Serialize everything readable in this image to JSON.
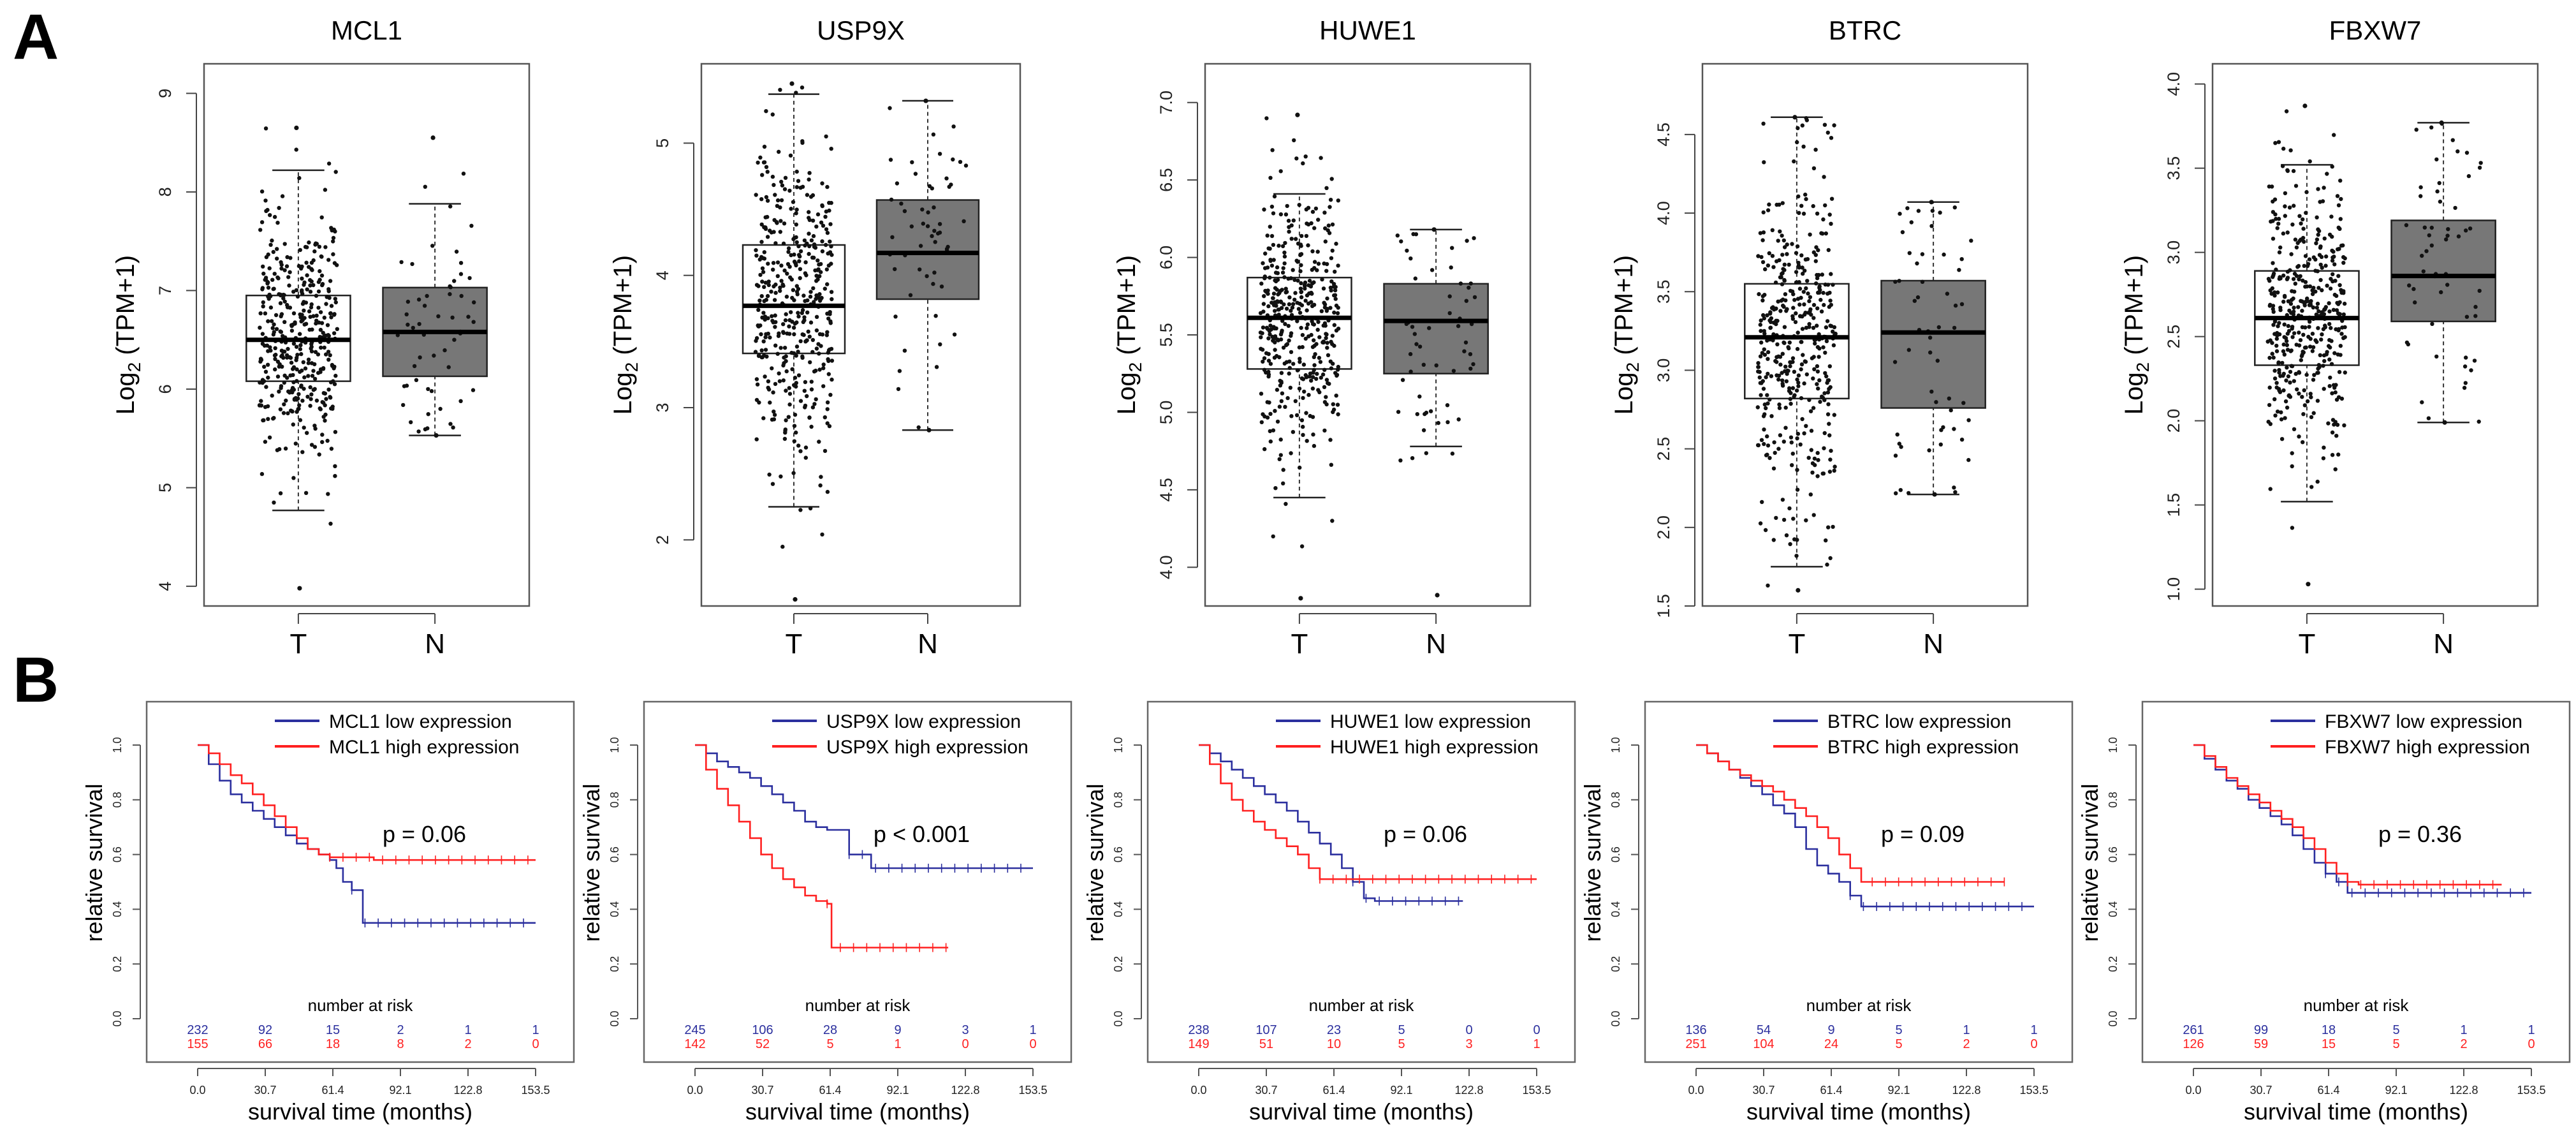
{
  "panels": {
    "a_label": "A",
    "b_label": "B"
  },
  "chart_data": [
    {
      "type": "box",
      "title": "MCL1",
      "ylabel_main": "Log",
      "ylabel_sub": "2",
      "ylabel_tail": " (TPM+1)",
      "ylim": [
        3.8,
        9.3
      ],
      "yticks": [
        4,
        5,
        6,
        7,
        8,
        9
      ],
      "categories": [
        "T",
        "N"
      ],
      "boxes": [
        {
          "group": "T",
          "whisker_low": 4.77,
          "q1": 6.08,
          "median": 6.5,
          "q3": 6.95,
          "whisker_high": 8.22,
          "fill": "#ffffff",
          "n_points": 420,
          "min_point": 3.98,
          "max_point": 8.65
        },
        {
          "group": "N",
          "whisker_low": 5.53,
          "q1": 6.13,
          "median": 6.58,
          "q3": 7.03,
          "whisker_high": 7.88,
          "fill": "#777777",
          "n_points": 55,
          "min_point": 5.53,
          "max_point": 8.55
        }
      ]
    },
    {
      "type": "box",
      "title": "USP9X",
      "ylabel_main": "Log",
      "ylabel_sub": "2",
      "ylabel_tail": " (TPM+1)",
      "ylim": [
        1.5,
        5.6
      ],
      "yticks": [
        2,
        3,
        4,
        5
      ],
      "categories": [
        "T",
        "N"
      ],
      "boxes": [
        {
          "group": "T",
          "whisker_low": 2.25,
          "q1": 3.41,
          "median": 3.77,
          "q3": 4.23,
          "whisker_high": 5.37,
          "fill": "#ffffff",
          "n_points": 420,
          "min_point": 1.55,
          "max_point": 5.45
        },
        {
          "group": "N",
          "whisker_low": 2.83,
          "q1": 3.82,
          "median": 4.17,
          "q3": 4.57,
          "whisker_high": 5.32,
          "fill": "#777777",
          "n_points": 55,
          "min_point": 2.83,
          "max_point": 5.32
        }
      ]
    },
    {
      "type": "box",
      "title": "HUWE1",
      "ylabel_main": "Log",
      "ylabel_sub": "2",
      "ylabel_tail": " (TPM+1)",
      "ylim": [
        3.75,
        7.25
      ],
      "yticks": [
        4.0,
        4.5,
        5.0,
        5.5,
        6.0,
        6.5,
        7.0
      ],
      "categories": [
        "T",
        "N"
      ],
      "boxes": [
        {
          "group": "T",
          "whisker_low": 4.45,
          "q1": 5.28,
          "median": 5.61,
          "q3": 5.87,
          "whisker_high": 6.41,
          "fill": "#ffffff",
          "n_points": 420,
          "min_point": 3.8,
          "max_point": 6.92
        },
        {
          "group": "N",
          "whisker_low": 4.78,
          "q1": 5.25,
          "median": 5.59,
          "q3": 5.83,
          "whisker_high": 6.18,
          "fill": "#777777",
          "n_points": 55,
          "min_point": 3.82,
          "max_point": 6.18
        }
      ]
    },
    {
      "type": "box",
      "title": "BTRC",
      "ylabel_main": "Log",
      "ylabel_sub": "2",
      "ylabel_tail": " (TPM+1)",
      "ylim": [
        1.5,
        4.95
      ],
      "yticks": [
        1.5,
        2.0,
        2.5,
        3.0,
        3.5,
        4.0,
        4.5
      ],
      "categories": [
        "T",
        "N"
      ],
      "boxes": [
        {
          "group": "T",
          "whisker_low": 1.75,
          "q1": 2.82,
          "median": 3.21,
          "q3": 3.55,
          "whisker_high": 4.61,
          "fill": "#ffffff",
          "n_points": 420,
          "min_point": 1.6,
          "max_point": 4.61
        },
        {
          "group": "N",
          "whisker_low": 2.21,
          "q1": 2.76,
          "median": 3.24,
          "q3": 3.57,
          "whisker_high": 4.07,
          "fill": "#777777",
          "n_points": 55,
          "min_point": 2.21,
          "max_point": 4.07
        }
      ]
    },
    {
      "type": "box",
      "title": "FBXW7",
      "ylabel_main": "Log",
      "ylabel_sub": "2",
      "ylabel_tail": " (TPM+1)",
      "ylim": [
        0.9,
        4.12
      ],
      "yticks": [
        1.0,
        1.5,
        2.0,
        2.5,
        3.0,
        3.5,
        4.0
      ],
      "categories": [
        "T",
        "N"
      ],
      "boxes": [
        {
          "group": "T",
          "whisker_low": 1.52,
          "q1": 2.33,
          "median": 2.61,
          "q3": 2.89,
          "whisker_high": 3.52,
          "fill": "#ffffff",
          "n_points": 420,
          "min_point": 1.03,
          "max_point": 3.87
        },
        {
          "group": "N",
          "whisker_low": 1.99,
          "q1": 2.59,
          "median": 2.86,
          "q3": 3.19,
          "whisker_high": 3.77,
          "fill": "#777777",
          "n_points": 55,
          "min_point": 1.99,
          "max_point": 3.77
        }
      ]
    },
    {
      "type": "line",
      "subtype": "kaplan-meier",
      "xlabel": "survival time (months)",
      "ylabel": "relative survival",
      "xticks": [
        "0.0",
        "30.7",
        "61.4",
        "92.1",
        "122.8",
        "153.5"
      ],
      "xlim": [
        0,
        153.5
      ],
      "yticks": [
        "0.0",
        "0.2",
        "0.4",
        "0.6",
        "0.8",
        "1.0"
      ],
      "ylim": [
        0,
        1.0
      ],
      "p_value": "p = 0.06",
      "risk_title": "number at risk",
      "series": [
        {
          "name": "MCL1 low expression",
          "color": "#2b2f9e",
          "risk": [
            "232",
            "92",
            "15",
            "2",
            "1",
            "1"
          ],
          "x": [
            0,
            5,
            10,
            15,
            20,
            25,
            30,
            35,
            40,
            45,
            50,
            55,
            60,
            63,
            66,
            70,
            75,
            80,
            153.5
          ],
          "y": [
            1.0,
            0.93,
            0.87,
            0.82,
            0.79,
            0.76,
            0.73,
            0.7,
            0.67,
            0.64,
            0.62,
            0.6,
            0.58,
            0.55,
            0.5,
            0.47,
            0.35,
            0.35,
            0.35
          ]
        },
        {
          "name": "MCL1 high expression",
          "color": "#ff2020",
          "risk": [
            "155",
            "66",
            "18",
            "8",
            "2",
            "0"
          ],
          "x": [
            0,
            5,
            10,
            15,
            20,
            25,
            30,
            35,
            40,
            45,
            50,
            55,
            60,
            70,
            80,
            153.5
          ],
          "y": [
            1.0,
            0.97,
            0.93,
            0.89,
            0.86,
            0.82,
            0.78,
            0.74,
            0.7,
            0.66,
            0.62,
            0.6,
            0.59,
            0.59,
            0.58,
            0.58
          ]
        }
      ]
    },
    {
      "type": "line",
      "subtype": "kaplan-meier",
      "xlabel": "survival time (months)",
      "ylabel": "relative survival",
      "xticks": [
        "0.0",
        "30.7",
        "61.4",
        "92.1",
        "122.8",
        "153.5"
      ],
      "xlim": [
        0,
        153.5
      ],
      "yticks": [
        "0.0",
        "0.2",
        "0.4",
        "0.6",
        "0.8",
        "1.0"
      ],
      "ylim": [
        0,
        1.0
      ],
      "p_value": "p < 0.001",
      "risk_title": "number at risk",
      "series": [
        {
          "name": "USP9X low expression",
          "color": "#2b2f9e",
          "risk": [
            "245",
            "106",
            "28",
            "9",
            "3",
            "1"
          ],
          "x": [
            0,
            5,
            10,
            15,
            20,
            25,
            30,
            35,
            40,
            45,
            50,
            55,
            60,
            65,
            70,
            80,
            90,
            153.5
          ],
          "y": [
            1.0,
            0.97,
            0.94,
            0.92,
            0.9,
            0.88,
            0.85,
            0.82,
            0.79,
            0.76,
            0.72,
            0.7,
            0.69,
            0.69,
            0.6,
            0.55,
            0.55,
            0.55
          ]
        },
        {
          "name": "USP9X high expression",
          "color": "#ff2020",
          "risk": [
            "142",
            "52",
            "5",
            "1",
            "0",
            "0"
          ],
          "x": [
            0,
            5,
            10,
            15,
            20,
            25,
            30,
            35,
            40,
            45,
            50,
            55,
            60,
            62,
            70,
            115
          ],
          "y": [
            1.0,
            0.91,
            0.84,
            0.78,
            0.72,
            0.66,
            0.6,
            0.55,
            0.51,
            0.48,
            0.45,
            0.43,
            0.42,
            0.26,
            0.26,
            0.26
          ]
        }
      ]
    },
    {
      "type": "line",
      "subtype": "kaplan-meier",
      "xlabel": "survival time (months)",
      "ylabel": "relative survival",
      "xticks": [
        "0.0",
        "30.7",
        "61.4",
        "92.1",
        "122.8",
        "153.5"
      ],
      "xlim": [
        0,
        153.5
      ],
      "yticks": [
        "0.0",
        "0.2",
        "0.4",
        "0.6",
        "0.8",
        "1.0"
      ],
      "ylim": [
        0,
        1.0
      ],
      "p_value": "p = 0.06",
      "risk_title": "number at risk",
      "series": [
        {
          "name": "HUWE1 low expression",
          "color": "#2b2f9e",
          "risk": [
            "238",
            "107",
            "23",
            "5",
            "0",
            "0"
          ],
          "x": [
            0,
            5,
            10,
            15,
            20,
            25,
            30,
            35,
            40,
            45,
            50,
            55,
            60,
            65,
            70,
            75,
            80,
            120
          ],
          "y": [
            1.0,
            0.97,
            0.94,
            0.91,
            0.88,
            0.85,
            0.82,
            0.79,
            0.76,
            0.72,
            0.68,
            0.64,
            0.6,
            0.55,
            0.5,
            0.44,
            0.43,
            0.43
          ]
        },
        {
          "name": "HUWE1 high expression",
          "color": "#ff2020",
          "risk": [
            "149",
            "51",
            "10",
            "5",
            "3",
            "1"
          ],
          "x": [
            0,
            5,
            10,
            15,
            20,
            25,
            30,
            35,
            40,
            45,
            50,
            55,
            60,
            65,
            153.5
          ],
          "y": [
            1.0,
            0.93,
            0.86,
            0.8,
            0.76,
            0.72,
            0.69,
            0.66,
            0.63,
            0.6,
            0.55,
            0.51,
            0.51,
            0.51,
            0.51
          ]
        }
      ]
    },
    {
      "type": "line",
      "subtype": "kaplan-meier",
      "xlabel": "survival time (months)",
      "ylabel": "relative survival",
      "xticks": [
        "0.0",
        "30.7",
        "61.4",
        "92.1",
        "122.8",
        "153.5"
      ],
      "xlim": [
        0,
        153.5
      ],
      "yticks": [
        "0.0",
        "0.2",
        "0.4",
        "0.6",
        "0.8",
        "1.0"
      ],
      "ylim": [
        0,
        1.0
      ],
      "p_value": "p = 0.09",
      "risk_title": "number at risk",
      "series": [
        {
          "name": "BTRC low expression",
          "color": "#2b2f9e",
          "risk": [
            "136",
            "54",
            "9",
            "5",
            "1",
            "1"
          ],
          "x": [
            0,
            5,
            10,
            15,
            20,
            25,
            30,
            35,
            40,
            45,
            50,
            55,
            60,
            65,
            70,
            75,
            80,
            153.5
          ],
          "y": [
            1.0,
            0.97,
            0.94,
            0.91,
            0.88,
            0.85,
            0.82,
            0.78,
            0.75,
            0.7,
            0.62,
            0.56,
            0.53,
            0.5,
            0.45,
            0.41,
            0.41,
            0.41
          ]
        },
        {
          "name": "BTRC high expression",
          "color": "#ff2020",
          "risk": [
            "251",
            "104",
            "24",
            "5",
            "2",
            "0"
          ],
          "x": [
            0,
            5,
            10,
            15,
            20,
            25,
            30,
            35,
            40,
            45,
            50,
            55,
            60,
            65,
            70,
            75,
            80,
            85,
            90,
            140
          ],
          "y": [
            1.0,
            0.97,
            0.94,
            0.91,
            0.89,
            0.87,
            0.85,
            0.83,
            0.8,
            0.77,
            0.74,
            0.7,
            0.66,
            0.6,
            0.55,
            0.5,
            0.5,
            0.5,
            0.5,
            0.5
          ]
        }
      ]
    },
    {
      "type": "line",
      "subtype": "kaplan-meier",
      "xlabel": "survival time (months)",
      "ylabel": "relative survival",
      "xticks": [
        "0.0",
        "30.7",
        "61.4",
        "92.1",
        "122.8",
        "153.5"
      ],
      "xlim": [
        0,
        153.5
      ],
      "yticks": [
        "0.0",
        "0.2",
        "0.4",
        "0.6",
        "0.8",
        "1.0"
      ],
      "ylim": [
        0,
        1.0
      ],
      "p_value": "p = 0.36",
      "risk_title": "number at risk",
      "series": [
        {
          "name": "FBXW7 low expression",
          "color": "#2b2f9e",
          "risk": [
            "261",
            "99",
            "18",
            "5",
            "1",
            "1"
          ],
          "x": [
            0,
            5,
            10,
            15,
            20,
            25,
            30,
            35,
            40,
            45,
            50,
            55,
            60,
            65,
            70,
            153.5
          ],
          "y": [
            1.0,
            0.95,
            0.91,
            0.87,
            0.84,
            0.8,
            0.77,
            0.74,
            0.71,
            0.67,
            0.62,
            0.57,
            0.53,
            0.5,
            0.46,
            0.46
          ]
        },
        {
          "name": "FBXW7 high expression",
          "color": "#ff2020",
          "risk": [
            "126",
            "59",
            "15",
            "5",
            "2",
            "0"
          ],
          "x": [
            0,
            5,
            10,
            15,
            20,
            25,
            30,
            35,
            40,
            45,
            50,
            55,
            60,
            65,
            70,
            75,
            80,
            140
          ],
          "y": [
            1.0,
            0.96,
            0.92,
            0.88,
            0.85,
            0.82,
            0.79,
            0.76,
            0.73,
            0.7,
            0.66,
            0.62,
            0.57,
            0.53,
            0.5,
            0.49,
            0.49,
            0.49
          ]
        }
      ]
    }
  ]
}
